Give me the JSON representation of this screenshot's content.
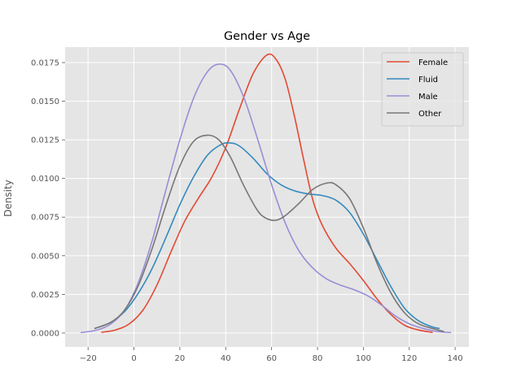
{
  "chart_data": {
    "type": "line",
    "title": "Gender vs Age",
    "xlabel": "",
    "ylabel": "Density",
    "xlim": [
      -30,
      146
    ],
    "ylim": [
      -0.0009,
      0.0185
    ],
    "xticks": [
      -20,
      0,
      20,
      40,
      60,
      80,
      100,
      120,
      140
    ],
    "xtick_labels": [
      "−20",
      "0",
      "20",
      "40",
      "60",
      "80",
      "100",
      "120",
      "140"
    ],
    "yticks": [
      0.0,
      0.0025,
      0.005,
      0.0075,
      0.01,
      0.0125,
      0.015,
      0.0175
    ],
    "ytick_labels": [
      "0.0000",
      "0.0025",
      "0.0050",
      "0.0075",
      "0.0100",
      "0.0125",
      "0.0150",
      "0.0175"
    ],
    "grid": true,
    "legend_position": "top-right",
    "series": [
      {
        "name": "Female",
        "color": "#E24A33",
        "points": [
          [
            -14,
            5e-05
          ],
          [
            -8,
            0.0002
          ],
          [
            -2,
            0.0006
          ],
          [
            4,
            0.0015
          ],
          [
            10,
            0.0031
          ],
          [
            16,
            0.0052
          ],
          [
            22,
            0.0072
          ],
          [
            28,
            0.0087
          ],
          [
            34,
            0.0101
          ],
          [
            40,
            0.012
          ],
          [
            46,
            0.0145
          ],
          [
            52,
            0.0168
          ],
          [
            58,
            0.018
          ],
          [
            62,
            0.0177
          ],
          [
            66,
            0.0164
          ],
          [
            70,
            0.014
          ],
          [
            74,
            0.0112
          ],
          [
            78,
            0.0086
          ],
          [
            82,
            0.007
          ],
          [
            88,
            0.0055
          ],
          [
            94,
            0.0045
          ],
          [
            100,
            0.0034
          ],
          [
            106,
            0.0022
          ],
          [
            112,
            0.0012
          ],
          [
            118,
            0.0005
          ],
          [
            124,
            0.0002
          ],
          [
            130,
            4e-05
          ]
        ]
      },
      {
        "name": "Fluid",
        "color": "#348ABD",
        "points": [
          [
            -17,
            0.0003
          ],
          [
            -10,
            0.0007
          ],
          [
            -4,
            0.0014
          ],
          [
            2,
            0.0026
          ],
          [
            8,
            0.0042
          ],
          [
            14,
            0.0062
          ],
          [
            20,
            0.0083
          ],
          [
            26,
            0.0101
          ],
          [
            32,
            0.0115
          ],
          [
            38,
            0.0122
          ],
          [
            42,
            0.0123
          ],
          [
            46,
            0.0121
          ],
          [
            52,
            0.0113
          ],
          [
            58,
            0.0103
          ],
          [
            64,
            0.0096
          ],
          [
            70,
            0.0092
          ],
          [
            76,
            0.009
          ],
          [
            82,
            0.0089
          ],
          [
            88,
            0.0086
          ],
          [
            94,
            0.0078
          ],
          [
            100,
            0.0064
          ],
          [
            106,
            0.0047
          ],
          [
            112,
            0.003
          ],
          [
            118,
            0.0016
          ],
          [
            124,
            0.0008
          ],
          [
            130,
            0.0004
          ],
          [
            133,
            0.0003
          ]
        ]
      },
      {
        "name": "Male",
        "color": "#988ED5",
        "points": [
          [
            -23,
            3e-05
          ],
          [
            -16,
            0.0002
          ],
          [
            -10,
            0.0006
          ],
          [
            -4,
            0.0015
          ],
          [
            2,
            0.0033
          ],
          [
            8,
            0.006
          ],
          [
            14,
            0.0093
          ],
          [
            20,
            0.0125
          ],
          [
            26,
            0.0152
          ],
          [
            32,
            0.0169
          ],
          [
            37,
            0.0174
          ],
          [
            42,
            0.017
          ],
          [
            48,
            0.0152
          ],
          [
            54,
            0.0125
          ],
          [
            60,
            0.0096
          ],
          [
            66,
            0.0071
          ],
          [
            72,
            0.0053
          ],
          [
            78,
            0.0042
          ],
          [
            84,
            0.0035
          ],
          [
            90,
            0.0031
          ],
          [
            96,
            0.0028
          ],
          [
            102,
            0.0024
          ],
          [
            108,
            0.0018
          ],
          [
            114,
            0.0011
          ],
          [
            120,
            0.0006
          ],
          [
            126,
            0.0003
          ],
          [
            132,
            0.0001
          ],
          [
            138,
            3e-05
          ]
        ]
      },
      {
        "name": "Other",
        "color": "#777777",
        "points": [
          [
            -17,
            0.0003
          ],
          [
            -10,
            0.0007
          ],
          [
            -4,
            0.0015
          ],
          [
            2,
            0.0031
          ],
          [
            8,
            0.0055
          ],
          [
            14,
            0.0083
          ],
          [
            20,
            0.0108
          ],
          [
            26,
            0.0124
          ],
          [
            32,
            0.0128
          ],
          [
            37,
            0.0125
          ],
          [
            42,
            0.0114
          ],
          [
            48,
            0.0095
          ],
          [
            54,
            0.0079
          ],
          [
            58,
            0.0074
          ],
          [
            62,
            0.0073
          ],
          [
            66,
            0.0076
          ],
          [
            72,
            0.0084
          ],
          [
            78,
            0.0093
          ],
          [
            84,
            0.0097
          ],
          [
            88,
            0.0096
          ],
          [
            94,
            0.0087
          ],
          [
            100,
            0.0068
          ],
          [
            106,
            0.0045
          ],
          [
            112,
            0.0026
          ],
          [
            118,
            0.0013
          ],
          [
            124,
            0.0006
          ],
          [
            130,
            0.0003
          ],
          [
            135,
            0.0001
          ]
        ]
      }
    ]
  }
}
